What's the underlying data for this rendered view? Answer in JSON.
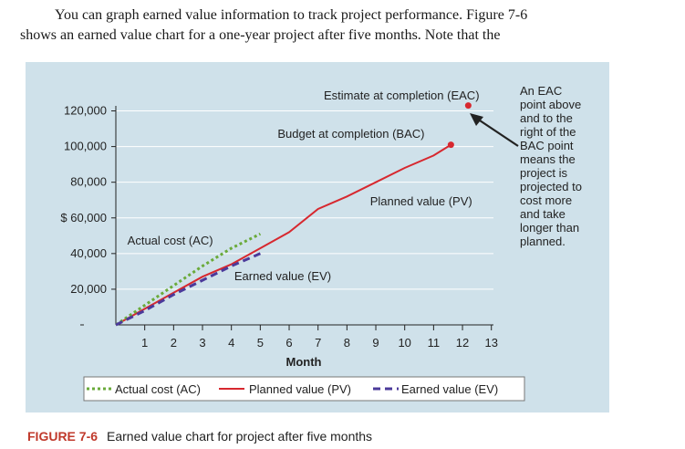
{
  "intro": {
    "line1": "You can graph earned value information to track project performance. Figure 7-6",
    "line2": "shows an earned value chart for a one-year project after five months. Note that the"
  },
  "caption": {
    "figure_label": "FIGURE 7-6",
    "text": "Earned value chart for project after five months"
  },
  "side_note": {
    "lines": [
      "An EAC",
      "point above",
      "and to the",
      "right of the",
      "BAC point",
      "means the",
      "project is",
      "projected to",
      "cost more",
      "and take",
      "longer than",
      "planned."
    ]
  },
  "chart_data": {
    "type": "line",
    "title": "",
    "xlabel": "Month",
    "ylabel": "",
    "xlim": [
      0,
      13
    ],
    "ylim": [
      0,
      125000
    ],
    "x_ticks": [
      "1",
      "2",
      "3",
      "4",
      "5",
      "6",
      "7",
      "8",
      "9",
      "10",
      "11",
      "12",
      "13"
    ],
    "y_ticks": [
      {
        "value": 20000,
        "label": "20,000"
      },
      {
        "value": 40000,
        "label": "40,000"
      },
      {
        "value": 60000,
        "label": "$ 60,000"
      },
      {
        "value": 80000,
        "label": "80,000"
      },
      {
        "value": 100000,
        "label": "100,000"
      },
      {
        "value": 120000,
        "label": "120,000"
      }
    ],
    "grid": true,
    "legend_placement": "bottom",
    "series": [
      {
        "name": "Actual cost (AC)",
        "color": "#6aaa3a",
        "style": "dotted",
        "x": [
          0,
          1,
          2,
          3,
          4,
          5
        ],
        "y": [
          0,
          11000,
          22000,
          33000,
          43000,
          51000
        ]
      },
      {
        "name": "Planned value (PV)",
        "color": "#d7282f",
        "style": "solid",
        "x": [
          0,
          1,
          2,
          3,
          4,
          5,
          6,
          7,
          8,
          9,
          10,
          11,
          11.6
        ],
        "y": [
          0,
          9000,
          18000,
          27000,
          34000,
          43000,
          52000,
          65000,
          72000,
          80000,
          88000,
          95000,
          101000
        ]
      },
      {
        "name": "Earned value (EV)",
        "color": "#4b3a9a",
        "style": "dashed",
        "x": [
          0,
          1,
          2,
          3,
          4,
          5
        ],
        "y": [
          0,
          8000,
          17000,
          25000,
          33000,
          40000
        ]
      }
    ],
    "points": [
      {
        "name": "BAC",
        "x": 11.6,
        "y": 101000,
        "color": "#d7282f"
      },
      {
        "name": "EAC",
        "x": 12.2,
        "y": 123000,
        "color": "#d7282f"
      }
    ],
    "annotations": [
      {
        "text": "Estimate at completion (EAC)",
        "x": 7.2,
        "y": 126500
      },
      {
        "text": "Budget at completion (BAC)",
        "x": 5.6,
        "y": 105000
      },
      {
        "text": "Planned value (PV)",
        "x": 8.8,
        "y": 67000
      },
      {
        "text": "Actual cost (AC)",
        "x": 0.4,
        "y": 45000
      },
      {
        "text": "Earned value (EV)",
        "x": 4.1,
        "y": 25000
      }
    ]
  }
}
